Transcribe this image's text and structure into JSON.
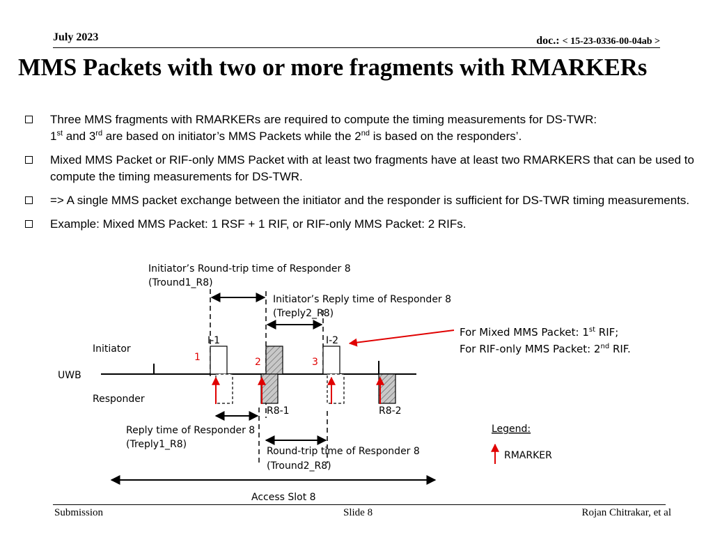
{
  "header": {
    "date": "July 2023",
    "doc_label": "doc.:",
    "doc_number": "< 15-23-0336-00-04ab >"
  },
  "title": "MMS Packets with two or more fragments with RMARKERs",
  "bullets": [
    {
      "line1": "Three MMS fragments with RMARKERs are required to compute the timing measurements for DS-TWR:",
      "part_a": "1",
      "sup_a": "st",
      "part_b": " and 3",
      "sup_b": "rd",
      "part_c": " are based on initiator’s MMS Packets while the 2",
      "sup_c": "nd",
      "part_d": " is based on the responders’."
    },
    {
      "text": "Mixed MMS Packet or RIF-only MMS Packet with at least two fragments have at least two RMARKERS that can be used to compute the timing measurements for DS-TWR."
    },
    {
      "text": "=>  A single MMS packet exchange between the initiator and the responder is sufficient for DS-TWR timing measurements."
    },
    {
      "text": "Example: Mixed MMS Packet: 1 RSF + 1 RIF, or RIF-only MMS Packet: 2 RIFs."
    }
  ],
  "diagram": {
    "round1_label": "Initiator’s Round-trip time of Responder 8",
    "round1_sym": "(Tround1_R8)",
    "reply2_label": "Initiator’s Reply time of Responder 8",
    "reply2_sym": "(Treply2_R8)",
    "note_line1_a": "For Mixed MMS Packet: 1",
    "note_line1_sup": "st",
    "note_line1_b": " RIF;",
    "note_line2_a": "For RIF-only MMS Packet: 2",
    "note_line2_sup": "nd",
    "note_line2_b": " RIF.",
    "initiator": "Initiator",
    "uwb": "UWB",
    "responder": "Responder",
    "i1": "I-1",
    "i2": "I-2",
    "m1": "1",
    "m2": "2",
    "m3": "3",
    "r81": "R8-1",
    "r82": "R8-2",
    "reply1_label": "Reply time of Responder 8",
    "reply1_sym": "(Treply1_R8)",
    "round2_label": "Round-trip time of Responder 8",
    "round2_sym": "(Tround2_R8)",
    "legend_title": "Legend:",
    "legend_item": "RMARKER",
    "access_slot": "Access Slot 8",
    "accent_color": "#e00000"
  },
  "footer": {
    "left": "Submission",
    "center": "Slide 8",
    "right": "Rojan Chitrakar, et al"
  }
}
